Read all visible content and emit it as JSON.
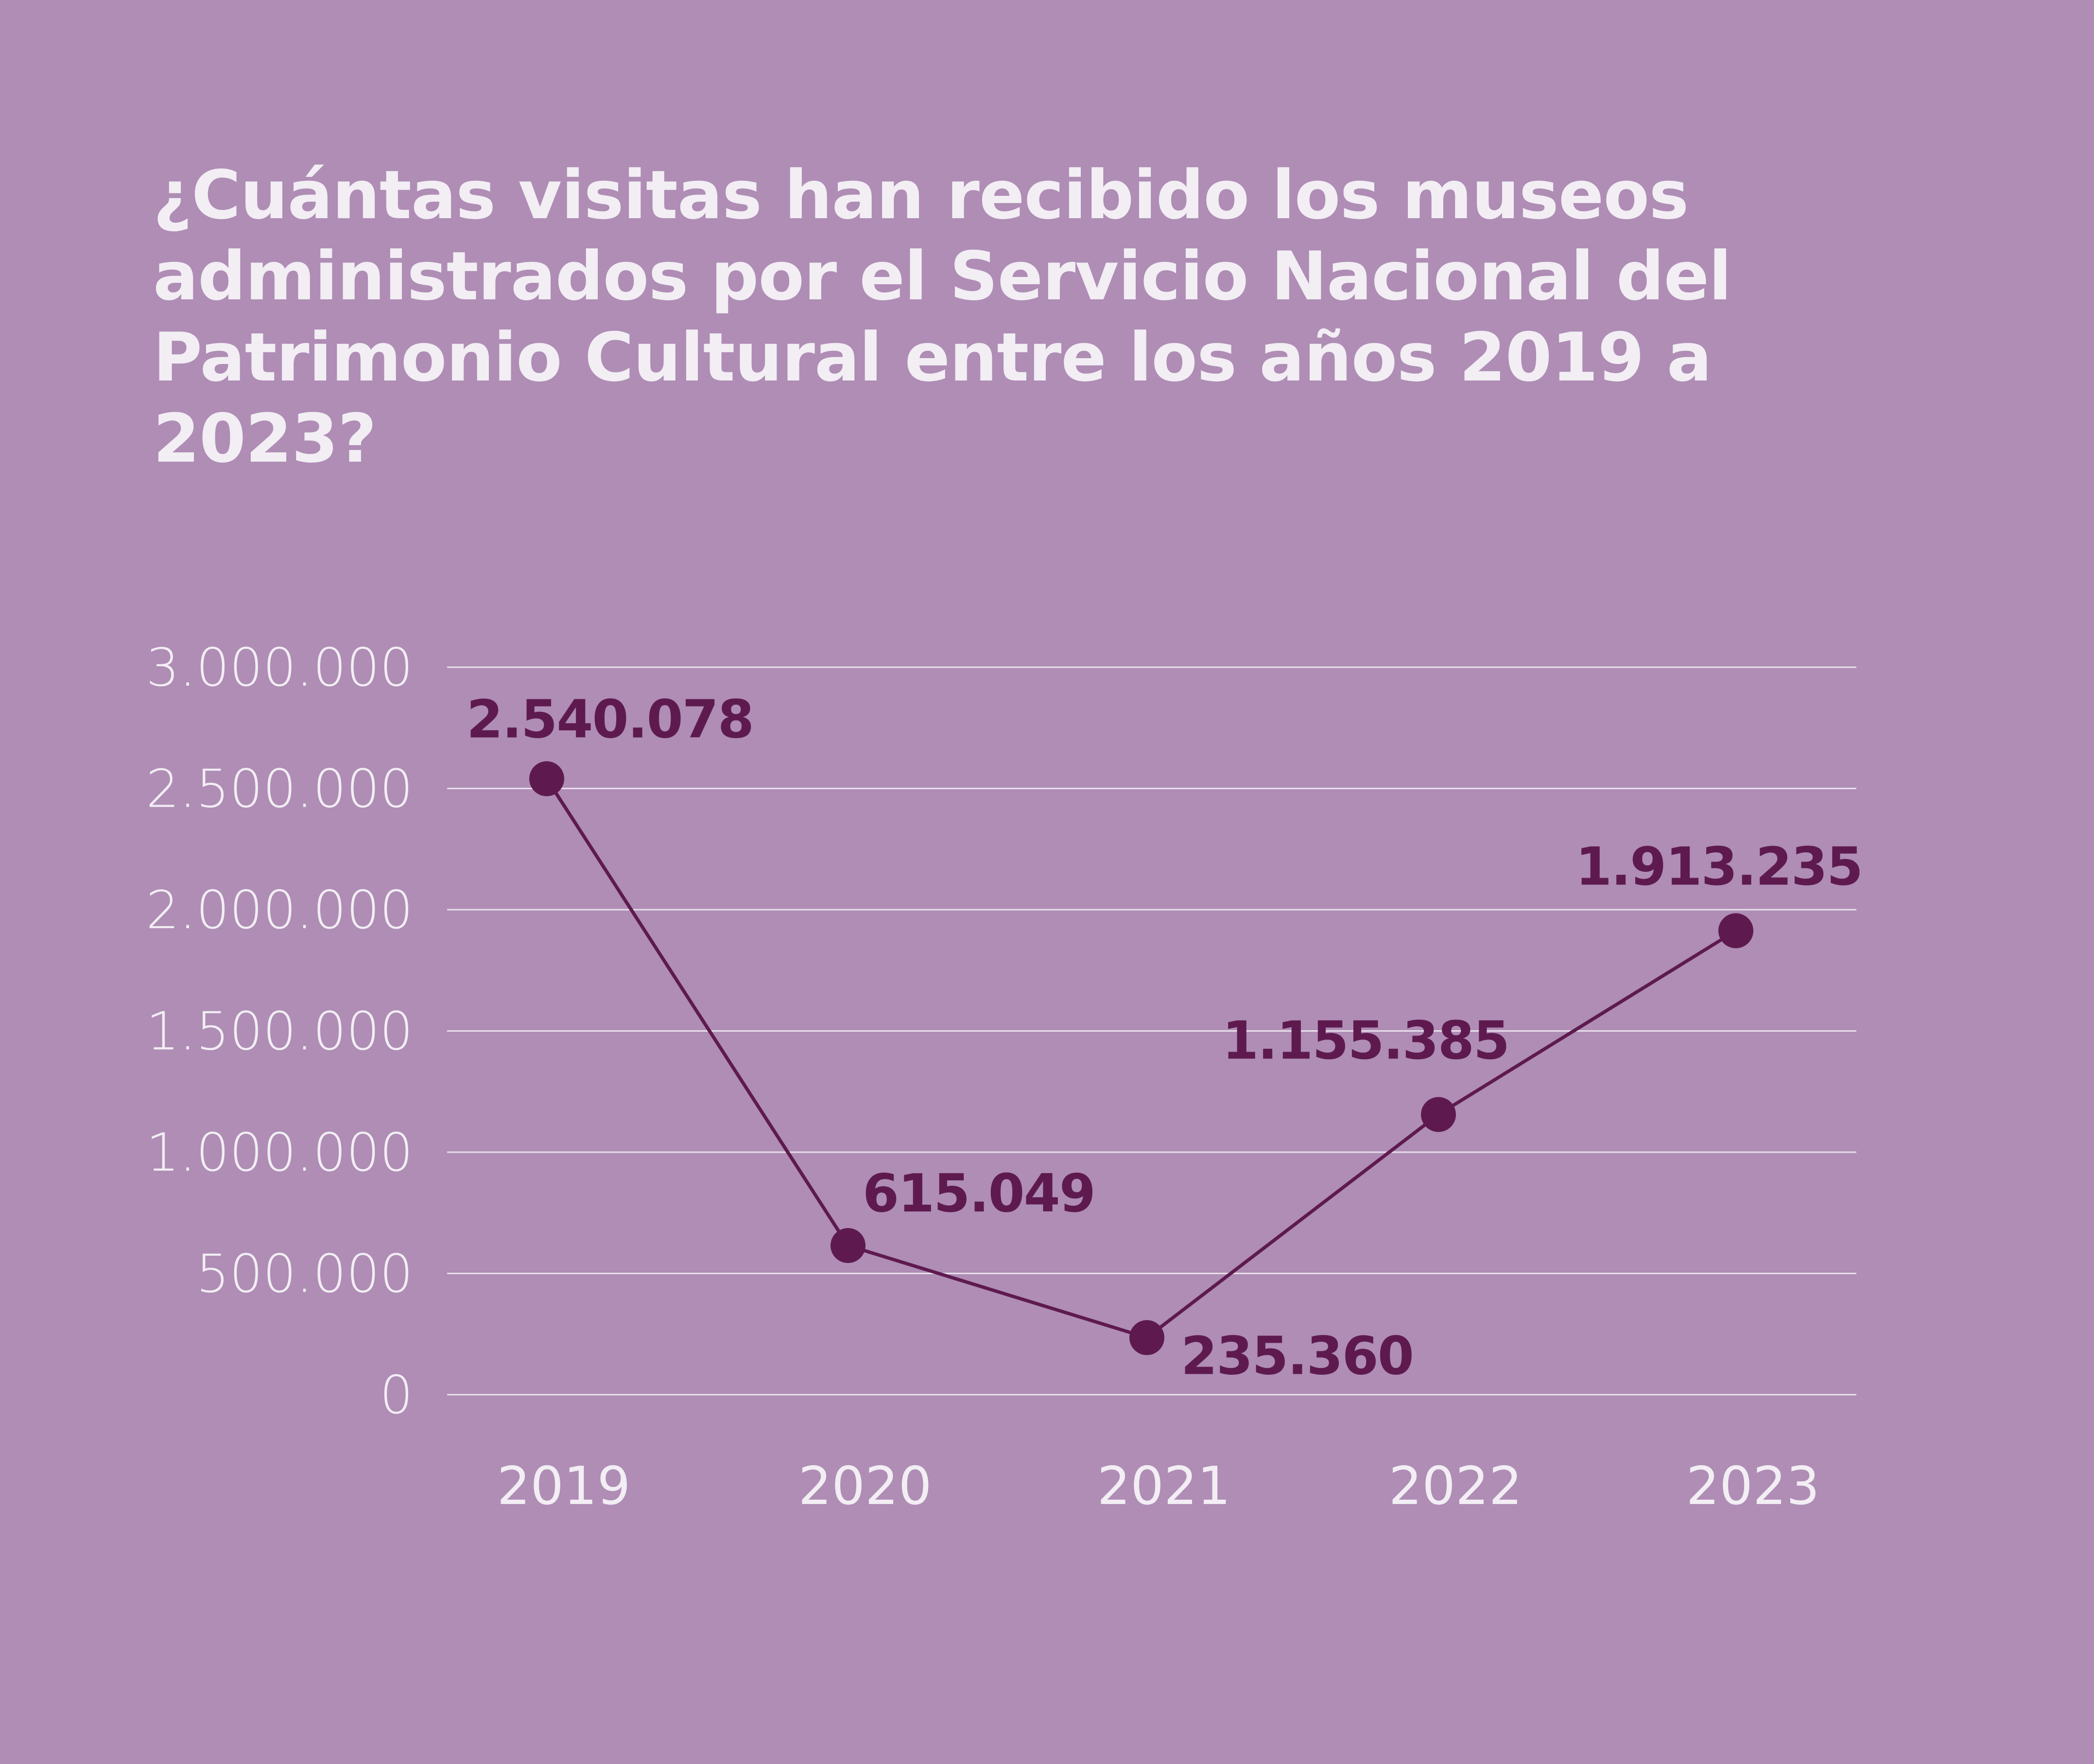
{
  "title": "¿Cuántas visitas han recibido los museos administrados por el Servicio Nacional del Patrimonio Cultural entre los años 2019 a 2023?",
  "colors": {
    "background": "#af8db5",
    "text": "#f2eef4",
    "series": "#5e1a4f",
    "grid": "#e8dfea"
  },
  "chart_data": {
    "type": "line",
    "title": "¿Cuántas visitas han recibido los museos administrados por el Servicio Nacional del Patrimonio Cultural entre los años 2019 a 2023?",
    "xlabel": "",
    "ylabel": "",
    "x": [
      "2019",
      "2020",
      "2021",
      "2022",
      "2023"
    ],
    "series": [
      {
        "values": [
          2540078,
          615049,
          235360,
          1155385,
          1913235
        ],
        "labels": [
          "2.540.078",
          "615.049",
          "235.360",
          "1.155.385",
          "1.913.235"
        ]
      }
    ],
    "ylim": [
      0,
      3000000
    ],
    "yticks": [
      0,
      500000,
      1000000,
      1500000,
      2000000,
      2500000,
      3000000
    ],
    "ytick_labels": [
      "0",
      "500.000",
      "1.000.000",
      "1.500.000",
      "2.000.000",
      "2.500.000",
      "3.000.000"
    ],
    "grid": true,
    "legend": "none"
  }
}
